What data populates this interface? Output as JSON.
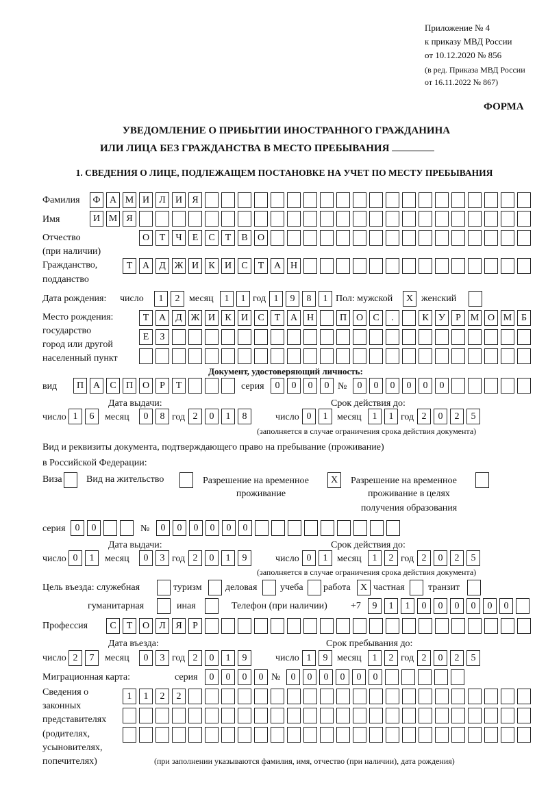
{
  "header": {
    "appendix": "Приложение № 4",
    "order": "к приказу МВД России",
    "order_date": "от 10.12.2020 № 856",
    "edition_1": "(в ред. Приказа МВД России",
    "edition_2": "от 16.11.2022 № 867)",
    "form_label": "ФОРМА"
  },
  "title": {
    "line1": "УВЕДОМЛЕНИЕ О ПРИБЫТИИ ИНОСТРАННОГО ГРАЖДАНИНА",
    "line2": "ИЛИ ЛИЦА БЕЗ ГРАЖДАНСТВА В МЕСТО ПРЕБЫВАНИЯ"
  },
  "section1": {
    "heading": "1. СВЕДЕНИЯ О ЛИЦЕ, ПОДЛЕЖАЩЕМ ПОСТАНОВКЕ НА УЧЕТ ПО МЕСТУ ПРЕБЫВАНИЯ",
    "labels": {
      "surname": "Фамилия",
      "name": "Имя",
      "patronymic": "Отчество",
      "patronymic_note": "(при наличии)",
      "citizenship": "Гражданство,",
      "citizenship2": "подданство",
      "birth_date": "Дата рождения:",
      "day": "число",
      "month": "месяц",
      "year": "год",
      "sex_male": "Пол: мужской",
      "sex_female": "женский",
      "birth_place": "Место рождения:",
      "birth_place2": "государство",
      "birth_place3": "город или другой",
      "birth_place4": "населенный пункт",
      "id_doc": "Документ, удостоверяющий личность:",
      "doc_kind": "вид",
      "series": "серия",
      "number": "№",
      "issue_date": "Дата выдачи:",
      "valid_until": "Срок действия до:",
      "validity_note": "(заполняется в случае ограничения срока действия документа)",
      "stay_doc_1": "Вид и реквизиты документа, подтверждающего право на пребывание (проживание)",
      "stay_doc_2": "в Российской Федерации:",
      "visa": "Виза",
      "residence_permit": "Вид на жительство",
      "temp_residence_1": "Разрешение на временное",
      "temp_residence_2": "проживание",
      "temp_edu_1": "Разрешение на временное",
      "temp_edu_2": "проживание в целях",
      "temp_edu_3": "получения образования",
      "purpose": "Цель въезда: служебная",
      "tourism": "туризм",
      "business": "деловая",
      "study": "учеба",
      "work": "работа",
      "private": "частная",
      "transit": "транзит",
      "humanitarian": "гуманитарная",
      "other": "иная",
      "phone": "Телефон (при наличии)",
      "phone_prefix": "+7",
      "profession": "Профессия",
      "entry_date": "Дата въезда:",
      "stay_until": "Срок пребывания до:",
      "migration_card": "Миграционная карта:",
      "reps_1": "Сведения о",
      "reps_2": "законных",
      "reps_3": "представителях",
      "reps_4": "(родителях,",
      "reps_5": "усыновителях,",
      "reps_6": "попечителях)",
      "reps_note": "(при заполнении указываются фамилия, имя, отчество (при наличии), дата рождения)"
    },
    "values": {
      "surname": [
        "Ф",
        "А",
        "М",
        "И",
        "Л",
        "И",
        "Я",
        "",
        "",
        "",
        "",
        "",
        "",
        "",
        "",
        "",
        "",
        "",
        "",
        "",
        "",
        "",
        "",
        "",
        "",
        "",
        ""
      ],
      "name": [
        "И",
        "М",
        "Я",
        "",
        "",
        "",
        "",
        "",
        "",
        "",
        "",
        "",
        "",
        "",
        "",
        "",
        "",
        "",
        "",
        "",
        "",
        "",
        "",
        "",
        "",
        "",
        ""
      ],
      "patronymic": [
        "О",
        "Т",
        "Ч",
        "Е",
        "С",
        "Т",
        "В",
        "О",
        "",
        "",
        "",
        "",
        "",
        "",
        "",
        "",
        "",
        "",
        "",
        "",
        "",
        "",
        "",
        ""
      ],
      "citizenship": [
        "Т",
        "А",
        "Д",
        "Ж",
        "И",
        "К",
        "И",
        "С",
        "Т",
        "А",
        "Н",
        "",
        "",
        "",
        "",
        "",
        "",
        "",
        "",
        "",
        "",
        "",
        "",
        "",
        ""
      ],
      "birth_day": [
        "1",
        "2"
      ],
      "birth_month": [
        "1",
        "1"
      ],
      "birth_year": [
        "1",
        "9",
        "8",
        "1"
      ],
      "sex_male": [
        "X"
      ],
      "sex_female": [
        ""
      ],
      "birth_place_1": [
        "Т",
        "А",
        "Д",
        "Ж",
        "И",
        "К",
        "И",
        "С",
        "Т",
        "А",
        "Н",
        "",
        "П",
        "О",
        "С",
        ".",
        "",
        "К",
        "У",
        "Р",
        "М",
        "О",
        "М",
        "Б"
      ],
      "birth_place_2": [
        "Е",
        "З",
        "",
        "",
        "",
        "",
        "",
        "",
        "",
        "",
        "",
        "",
        "",
        "",
        "",
        "",
        "",
        "",
        "",
        "",
        "",
        "",
        "",
        ""
      ],
      "birth_place_3": [
        "",
        "",
        "",
        "",
        "",
        "",
        "",
        "",
        "",
        "",
        "",
        "",
        "",
        "",
        "",
        "",
        "",
        "",
        "",
        "",
        "",
        "",
        "",
        ""
      ],
      "doc_kind": [
        "П",
        "А",
        "С",
        "П",
        "О",
        "Р",
        "Т",
        "",
        "",
        ""
      ],
      "doc_series": [
        "0",
        "0",
        "0",
        "0"
      ],
      "doc_number": [
        "0",
        "0",
        "0",
        "0",
        "0",
        "0",
        "",
        "",
        "",
        "",
        ""
      ],
      "doc_issue_day": [
        "1",
        "6"
      ],
      "doc_issue_month": [
        "0",
        "8"
      ],
      "doc_issue_year": [
        "2",
        "0",
        "1",
        "8"
      ],
      "doc_valid_day": [
        "0",
        "1"
      ],
      "doc_valid_month": [
        "1",
        "1"
      ],
      "doc_valid_year": [
        "2",
        "0",
        "2",
        "5"
      ],
      "visa": [
        ""
      ],
      "residence_permit": [
        ""
      ],
      "temp_residence": [
        "X"
      ],
      "temp_edu": [
        ""
      ],
      "stay_series": [
        "0",
        "0",
        "",
        ""
      ],
      "stay_number": [
        "0",
        "0",
        "0",
        "0",
        "0",
        "0",
        "",
        "",
        "",
        "",
        "",
        "",
        "",
        "",
        ""
      ],
      "stay_issue_day": [
        "0",
        "1"
      ],
      "stay_issue_month": [
        "0",
        "3"
      ],
      "stay_issue_year": [
        "2",
        "0",
        "1",
        "9"
      ],
      "stay_valid_day": [
        "0",
        "1"
      ],
      "stay_valid_month": [
        "1",
        "2"
      ],
      "stay_valid_year": [
        "2",
        "0",
        "2",
        "5"
      ],
      "purpose_official": [
        ""
      ],
      "purpose_tourism": [
        ""
      ],
      "purpose_business": [
        ""
      ],
      "purpose_study": [
        ""
      ],
      "purpose_work": [
        "X"
      ],
      "purpose_private": [
        ""
      ],
      "purpose_transit": [
        ""
      ],
      "purpose_humanitarian": [
        ""
      ],
      "purpose_other": [
        ""
      ],
      "phone": [
        "9",
        "1",
        "1",
        "0",
        "0",
        "0",
        "0",
        "0",
        "0",
        ""
      ],
      "profession": [
        "С",
        "Т",
        "О",
        "Л",
        "Я",
        "Р",
        "",
        "",
        "",
        "",
        "",
        "",
        "",
        "",
        "",
        "",
        "",
        "",
        "",
        "",
        "",
        "",
        "",
        "",
        "",
        ""
      ],
      "entry_day": [
        "2",
        "7"
      ],
      "entry_month": [
        "0",
        "3"
      ],
      "entry_year": [
        "2",
        "0",
        "1",
        "9"
      ],
      "stay_until_day": [
        "1",
        "9"
      ],
      "stay_until_month": [
        "1",
        "2"
      ],
      "stay_until_year": [
        "2",
        "0",
        "2",
        "5"
      ],
      "mig_series": [
        "0",
        "0",
        "0",
        "0"
      ],
      "mig_number": [
        "0",
        "0",
        "0",
        "0",
        "0",
        "0",
        "",
        "",
        "",
        "",
        ""
      ],
      "reps_1": [
        "1",
        "1",
        "2",
        "2",
        "",
        "",
        "",
        "",
        "",
        "",
        "",
        "",
        "",
        "",
        "",
        "",
        "",
        "",
        "",
        "",
        "",
        "",
        "",
        "",
        ""
      ],
      "reps_2": [
        "",
        "",
        "",
        "",
        "",
        "",
        "",
        "",
        "",
        "",
        "",
        "",
        "",
        "",
        "",
        "",
        "",
        "",
        "",
        "",
        "",
        "",
        "",
        "",
        ""
      ],
      "reps_3": [
        "",
        "",
        "",
        "",
        "",
        "",
        "",
        "",
        "",
        "",
        "",
        "",
        "",
        "",
        "",
        "",
        "",
        "",
        "",
        "",
        "",
        "",
        "",
        "",
        ""
      ]
    }
  }
}
